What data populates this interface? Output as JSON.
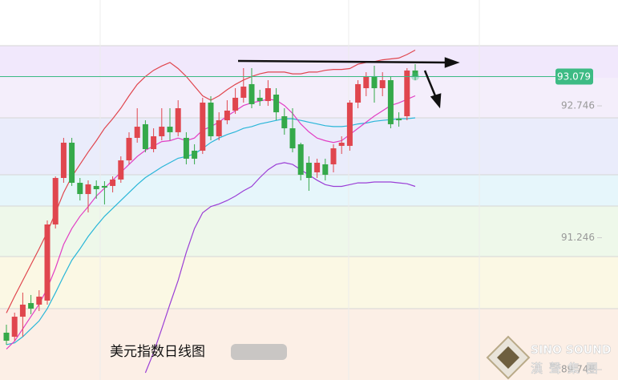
{
  "chart_data": {
    "type": "candlestick",
    "title": "美元指数日线图",
    "open": [
      90.166,
      90.12,
      90.348,
      90.503,
      90.485,
      90.531,
      91.397,
      91.926,
      92.327,
      91.871,
      91.743,
      91.835,
      91.835,
      91.835,
      91.908,
      92.126,
      92.382,
      92.537,
      92.254,
      92.4,
      92.509,
      92.446,
      92.382,
      92.236,
      92.236,
      92.783,
      92.4,
      92.582,
      92.692,
      92.838,
      92.993,
      92.838,
      92.801,
      92.874,
      92.628,
      92.491,
      92.309,
      92.099,
      91.99,
      92.081,
      92.081,
      92.291,
      92.291,
      92.783,
      92.947,
      93.084,
      92.947,
      93.038,
      92.601,
      92.628,
      93.148
    ],
    "high": [
      90.257,
      90.394,
      90.622,
      90.595,
      90.649,
      91.443,
      91.944,
      92.382,
      92.382,
      91.926,
      91.898,
      91.898,
      91.889,
      91.944,
      92.172,
      92.446,
      92.719,
      92.582,
      92.491,
      92.719,
      92.719,
      92.81,
      92.446,
      92.309,
      92.838,
      92.856,
      92.673,
      92.81,
      92.947,
      93.175,
      93.175,
      92.929,
      93.038,
      92.947,
      92.719,
      92.719,
      92.327,
      92.172,
      92.145,
      92.145,
      92.309,
      92.4,
      92.81,
      93.038,
      93.129,
      93.202,
      93.129,
      93.084,
      92.673,
      93.175,
      93.221
    ],
    "low": [
      90.029,
      90.075,
      90.12,
      90.376,
      90.412,
      90.485,
      91.351,
      91.871,
      91.835,
      91.67,
      91.534,
      91.689,
      91.625,
      91.762,
      91.871,
      92.081,
      92.327,
      92.218,
      92.218,
      92.354,
      92.354,
      92.4,
      92.081,
      92.081,
      92.199,
      92.354,
      92.354,
      92.537,
      92.655,
      92.783,
      92.719,
      92.746,
      92.746,
      92.582,
      92.418,
      92.218,
      91.898,
      91.78,
      91.926,
      91.898,
      91.99,
      92.199,
      92.236,
      92.719,
      92.856,
      92.783,
      92.856,
      92.491,
      92.509,
      92.582,
      93.038
    ],
    "close": [
      90.075,
      90.348,
      90.485,
      90.44,
      90.576,
      91.397,
      91.926,
      92.327,
      91.871,
      91.743,
      91.853,
      91.798,
      91.816,
      91.908,
      92.126,
      92.382,
      92.509,
      92.254,
      92.4,
      92.509,
      92.446,
      92.719,
      92.145,
      92.145,
      92.783,
      92.4,
      92.582,
      92.692,
      92.838,
      92.965,
      92.765,
      92.801,
      92.947,
      92.673,
      92.491,
      92.263,
      91.962,
      91.926,
      92.099,
      91.962,
      92.263,
      92.327,
      92.783,
      92.993,
      93.084,
      92.947,
      93.038,
      92.537,
      92.582,
      93.148,
      93.079
    ],
    "up_color": "#e0464e",
    "down_color": "#35a94a",
    "lines": [
      {
        "color": "#e0464e",
        "values": [
          90.39,
          90.58,
          90.76,
          90.94,
          91.12,
          91.31,
          91.53,
          91.76,
          91.94,
          92.08,
          92.22,
          92.35,
          92.49,
          92.6,
          92.72,
          92.86,
          92.99,
          93.08,
          93.15,
          93.2,
          93.24,
          93.17,
          93.08,
          92.97,
          92.86,
          92.81,
          92.86,
          92.93,
          92.99,
          93.04,
          93.08,
          93.11,
          93.13,
          93.13,
          93.13,
          93.11,
          93.11,
          93.13,
          93.13,
          93.15,
          93.16,
          93.16,
          93.17,
          93.22,
          93.24,
          93.25,
          93.27,
          93.28,
          93.29,
          93.33,
          93.38
        ]
      },
      {
        "color": "#9b3fd6",
        "values": [
          null,
          null,
          null,
          null,
          null,
          null,
          null,
          null,
          null,
          null,
          null,
          null,
          null,
          null,
          null,
          null,
          null,
          89.71,
          89.94,
          90.21,
          90.49,
          90.76,
          91.08,
          91.35,
          91.53,
          91.6,
          91.63,
          91.67,
          91.72,
          91.78,
          91.83,
          91.93,
          92.02,
          92.08,
          92.1,
          92.08,
          92.02,
          91.96,
          91.9,
          91.85,
          91.83,
          91.83,
          91.85,
          91.87,
          91.87,
          91.88,
          91.88,
          91.88,
          91.87,
          91.86,
          91.83
        ]
      },
      {
        "color": "#29b6d8",
        "values": [
          90.03,
          90.05,
          90.12,
          90.21,
          90.3,
          90.44,
          90.62,
          90.81,
          90.99,
          91.12,
          91.26,
          91.38,
          91.49,
          91.58,
          91.67,
          91.76,
          91.85,
          91.93,
          91.99,
          92.05,
          92.1,
          92.15,
          92.17,
          92.2,
          92.26,
          92.33,
          92.38,
          92.42,
          92.45,
          92.49,
          92.51,
          92.54,
          92.56,
          92.58,
          92.6,
          92.6,
          92.58,
          92.56,
          92.54,
          92.52,
          92.51,
          92.51,
          92.52,
          92.54,
          92.55,
          92.57,
          92.58,
          92.59,
          92.6,
          92.6,
          92.61
        ]
      },
      {
        "color": "#e23fc4",
        "values": [
          89.98,
          90.07,
          90.21,
          90.35,
          90.49,
          90.67,
          90.9,
          91.17,
          91.35,
          91.49,
          91.6,
          91.72,
          91.81,
          91.9,
          91.99,
          92.08,
          92.17,
          92.24,
          92.29,
          92.34,
          92.35,
          92.38,
          92.35,
          92.38,
          92.47,
          92.51,
          92.56,
          92.63,
          92.69,
          92.75,
          92.78,
          92.8,
          92.82,
          92.81,
          92.75,
          92.66,
          92.54,
          92.45,
          92.38,
          92.35,
          92.33,
          92.35,
          92.42,
          92.49,
          92.56,
          92.63,
          92.69,
          92.75,
          92.78,
          92.82,
          92.86
        ]
      }
    ],
    "ylim": [
      89.628,
      93.95
    ],
    "yticks": [
      92.746,
      91.246,
      89.746
    ],
    "current_price": 93.079,
    "current_price_color": "#3dbb84",
    "watermark": {
      "en": "SINO SOUND",
      "zh": "漢聲集團"
    }
  }
}
